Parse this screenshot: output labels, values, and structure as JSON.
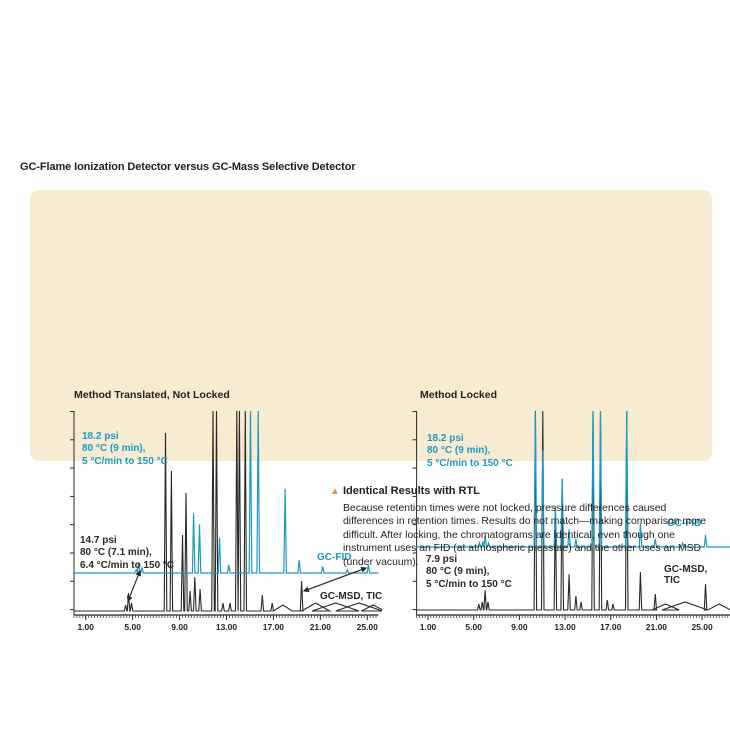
{
  "page_title": "GC-Flame Ionization Detector versus GC-Mass Selective Detector",
  "colors": {
    "panel_bg": "#f7ebd1",
    "fid_blue": "#1b9ac6",
    "msd_black": "#2c2824",
    "caption_marker_gold": "#d9a33c",
    "text_black": "#231f20"
  },
  "caption": {
    "marker": "▲",
    "heading": "Identical Results with RTL",
    "body": "Because retention times were not locked, pressure differences caused differences in retention times. Results do not match—making comparison more difficult. After locking, the chromatograms are identical, even though one instrument uses an FID (at atmospheric pressure) and the other uses an MSD (under vacuum)."
  },
  "chart_data": [
    {
      "type": "line",
      "title": "Method Translated, Not Locked",
      "x_tick_labels": [
        "1.00",
        "5.00",
        "9.00",
        "13.00",
        "17.00",
        "21.00",
        "25.00"
      ],
      "x_tick_values": [
        1,
        5,
        9,
        13,
        17,
        21,
        25
      ],
      "x_range": [
        0,
        26
      ],
      "x_unit": "minutes",
      "intensity_scale": "relative 0-100, 110 = off-scale (clipped peak)",
      "legend_position": "inline right",
      "grid": false,
      "series": [
        {
          "name": "GC-FID",
          "role": "fid",
          "conditions": [
            "18.2 psi",
            "80 °C (9 min),",
            "5 °C/min to 150 °C"
          ],
          "peaks": [
            [
              5.3,
              2
            ],
            [
              5.5,
              6
            ],
            [
              5.8,
              3
            ],
            [
              10.2,
              37
            ],
            [
              10.7,
              30
            ],
            [
              12.4,
              22
            ],
            [
              13.2,
              5
            ],
            [
              15.05,
              110
            ],
            [
              15.7,
              110
            ],
            [
              18.0,
              52
            ],
            [
              19.2,
              8
            ],
            [
              21.2,
              4
            ],
            [
              23.3,
              2
            ],
            [
              25.1,
              5
            ]
          ]
        },
        {
          "name": "GC-MSD, TIC",
          "role": "msd",
          "conditions": [
            "14.7 psi",
            "80 °C (7.1 min),",
            "6.4 °C/min to 150 °C"
          ],
          "peaks": [
            [
              4.4,
              3
            ],
            [
              4.65,
              9
            ],
            [
              4.9,
              4
            ],
            [
              7.8,
              89
            ],
            [
              8.3,
              70
            ],
            [
              9.25,
              38
            ],
            [
              9.55,
              59
            ],
            [
              9.9,
              10
            ],
            [
              10.3,
              17
            ],
            [
              10.75,
              11
            ],
            [
              11.85,
              110
            ],
            [
              12.15,
              110
            ],
            [
              12.7,
              4
            ],
            [
              13.3,
              4
            ],
            [
              13.88,
              110
            ],
            [
              14.1,
              110
            ],
            [
              14.6,
              110
            ],
            [
              16.05,
              8
            ],
            [
              16.9,
              4
            ],
            [
              17.8,
              3,
              0.8
            ],
            [
              19.4,
              15
            ],
            [
              20.6,
              4,
              1.2
            ],
            [
              22.3,
              4,
              2
            ],
            [
              24.3,
              4,
              2
            ],
            [
              25.5,
              3,
              1
            ]
          ]
        }
      ]
    },
    {
      "type": "line",
      "title": "Method Locked",
      "x_tick_labels": [
        "1.00",
        "5.00",
        "9.00",
        "13.00",
        "17.00",
        "21.00",
        "25.00"
      ],
      "x_tick_values": [
        1,
        5,
        9,
        13,
        17,
        21,
        25
      ],
      "x_range": [
        0,
        28
      ],
      "x_unit": "minutes",
      "intensity_scale": "relative 0-100, 110 = off-scale (clipped peak)",
      "legend_position": "inline right",
      "grid": false,
      "series": [
        {
          "name": "GC-FID",
          "role": "fid",
          "conditions": [
            "18.2 psi",
            "80 °C (9 min),",
            "5 °C/min to 150 °C"
          ],
          "peaks": [
            [
              5.5,
              3
            ],
            [
              5.8,
              4
            ],
            [
              6.0,
              8
            ],
            [
              6.3,
              3
            ],
            [
              10.4,
              99
            ],
            [
              11.05,
              71
            ],
            [
              12.15,
              29
            ],
            [
              12.75,
              50
            ],
            [
              13.35,
              13
            ],
            [
              13.95,
              6
            ],
            [
              15.45,
              110
            ],
            [
              16.1,
              110
            ],
            [
              18.4,
              110
            ],
            [
              19.6,
              17
            ],
            [
              20.9,
              6
            ],
            [
              23.3,
              3
            ],
            [
              25.3,
              9
            ]
          ]
        },
        {
          "name": "GC-MSD, TIC",
          "role": "msd",
          "conditions": [
            "7.9 psi",
            "80 °C (9 min),",
            "5 °C/min to 150 °C"
          ],
          "peaks": [
            [
              5.45,
              3
            ],
            [
              5.75,
              4
            ],
            [
              6.0,
              10
            ],
            [
              6.25,
              4
            ],
            [
              10.4,
              110
            ],
            [
              11.05,
              110
            ],
            [
              12.15,
              52
            ],
            [
              12.75,
              66
            ],
            [
              13.35,
              18
            ],
            [
              13.95,
              7
            ],
            [
              14.4,
              4
            ],
            [
              15.45,
              110
            ],
            [
              16.1,
              110
            ],
            [
              16.7,
              5
            ],
            [
              17.2,
              3
            ],
            [
              18.4,
              110
            ],
            [
              19.6,
              19
            ],
            [
              20.9,
              8
            ],
            [
              21.8,
              3,
              1.2
            ],
            [
              23.5,
              4,
              2
            ],
            [
              25.3,
              13
            ],
            [
              26.5,
              3,
              1
            ]
          ]
        }
      ]
    }
  ]
}
